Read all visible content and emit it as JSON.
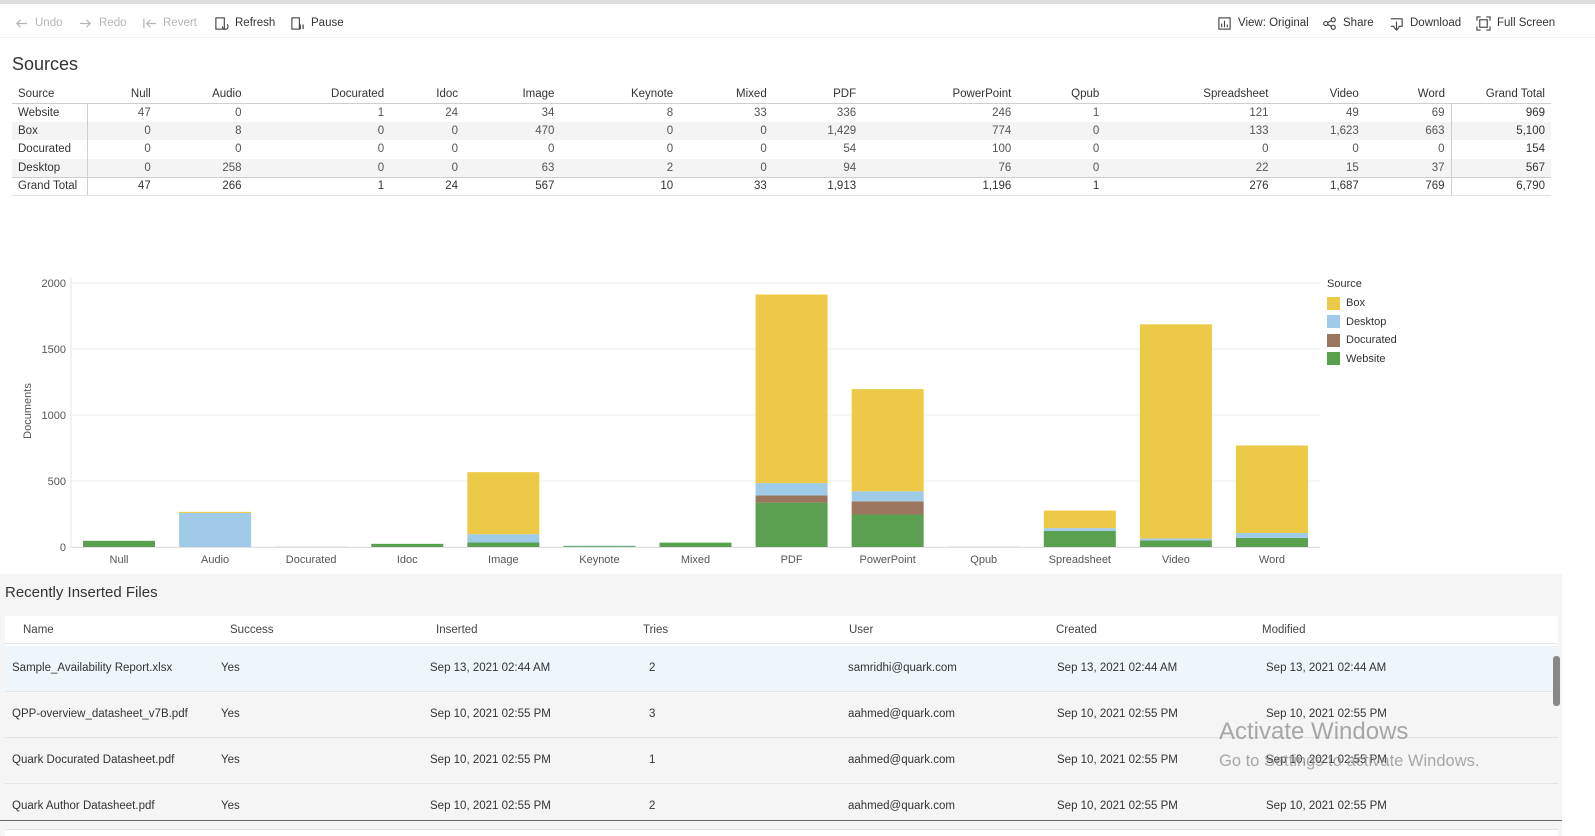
{
  "toolbar": {
    "undo": "Undo",
    "redo": "Redo",
    "revert": "Revert",
    "refresh": "Refresh",
    "pause": "Pause",
    "view": "View: Original",
    "share": "Share",
    "download": "Download",
    "fullscreen": "Full Screen"
  },
  "sources": {
    "title": "Sources",
    "row_header": "Source",
    "columns": [
      "Null",
      "Audio",
      "Docurated",
      "Idoc",
      "Image",
      "Keynote",
      "Mixed",
      "PDF",
      "PowerPoint",
      "Qpub",
      "Spreadsheet",
      "Video",
      "Word",
      "Grand Total"
    ],
    "rows": [
      {
        "label": "Website",
        "values": [
          "47",
          "0",
          "1",
          "24",
          "34",
          "8",
          "33",
          "336",
          "246",
          "1",
          "121",
          "49",
          "69",
          "969"
        ]
      },
      {
        "label": "Box",
        "values": [
          "0",
          "8",
          "0",
          "0",
          "470",
          "0",
          "0",
          "1,429",
          "774",
          "0",
          "133",
          "1,623",
          "663",
          "5,100"
        ]
      },
      {
        "label": "Docurated",
        "values": [
          "0",
          "0",
          "0",
          "0",
          "0",
          "0",
          "0",
          "54",
          "100",
          "0",
          "0",
          "0",
          "0",
          "154"
        ]
      },
      {
        "label": "Desktop",
        "values": [
          "0",
          "258",
          "0",
          "0",
          "63",
          "2",
          "0",
          "94",
          "76",
          "0",
          "22",
          "15",
          "37",
          "567"
        ]
      },
      {
        "label": "Grand Total",
        "values": [
          "47",
          "266",
          "1",
          "24",
          "567",
          "10",
          "33",
          "1,913",
          "1,196",
          "1",
          "276",
          "1,687",
          "769",
          "6,790"
        ]
      }
    ]
  },
  "chart_data": {
    "type": "bar",
    "stacked": true,
    "categories": [
      "Null",
      "Audio",
      "Docurated",
      "Idoc",
      "Image",
      "Keynote",
      "Mixed",
      "PDF",
      "PowerPoint",
      "Qpub",
      "Spreadsheet",
      "Video",
      "Word"
    ],
    "series": [
      {
        "name": "Website",
        "color": "#59a14f",
        "values": [
          47,
          0,
          1,
          24,
          34,
          8,
          33,
          336,
          246,
          1,
          121,
          49,
          69
        ]
      },
      {
        "name": "Docurated",
        "color": "#9c755f",
        "values": [
          0,
          0,
          0,
          0,
          0,
          0,
          0,
          54,
          100,
          0,
          0,
          0,
          0
        ]
      },
      {
        "name": "Desktop",
        "color": "#a0cbe8",
        "values": [
          0,
          258,
          0,
          0,
          63,
          2,
          0,
          94,
          76,
          0,
          22,
          15,
          37
        ]
      },
      {
        "name": "Box",
        "color": "#edc948",
        "values": [
          0,
          8,
          0,
          0,
          470,
          0,
          0,
          1429,
          774,
          0,
          133,
          1623,
          663
        ]
      }
    ],
    "ylabel": "Documents",
    "yticks": [
      0,
      500,
      1000,
      1500,
      2000
    ],
    "ylim": [
      0,
      2000
    ],
    "legend": {
      "title": "Source",
      "placement": "right",
      "order": [
        "Box",
        "Desktop",
        "Docurated",
        "Website"
      ]
    },
    "grid": true
  },
  "recent": {
    "title": "Recently Inserted Files",
    "headers": [
      "Name",
      "Success",
      "Inserted",
      "Tries",
      "User",
      "Created",
      "Modified"
    ],
    "rows": [
      [
        "Sample_Availability Report.xlsx",
        "Yes",
        "Sep 13, 2021 02:44 AM",
        "2",
        "samridhi@quark.com",
        "Sep 13, 2021 02:44 AM",
        "Sep 13, 2021 02:44 AM"
      ],
      [
        "QPP-overview_datasheet_v7B.pdf",
        "Yes",
        "Sep 10, 2021 02:55 PM",
        "3",
        "aahmed@quark.com",
        "Sep 10, 2021 02:55 PM",
        "Sep 10, 2021 02:55 PM"
      ],
      [
        "Quark Docurated Datasheet.pdf",
        "Yes",
        "Sep 10, 2021 02:55 PM",
        "1",
        "aahmed@quark.com",
        "Sep 10, 2021 02:55 PM",
        "Sep 10, 2021 02:55 PM"
      ],
      [
        "Quark Author Datasheet.pdf",
        "Yes",
        "Sep 10, 2021 02:55 PM",
        "2",
        "aahmed@quark.com",
        "Sep 10, 2021 02:55 PM",
        "Sep 10, 2021 02:55 PM"
      ]
    ]
  },
  "watermark": {
    "line1": "Activate Windows",
    "line2": "Go to Settings to activate Windows."
  }
}
